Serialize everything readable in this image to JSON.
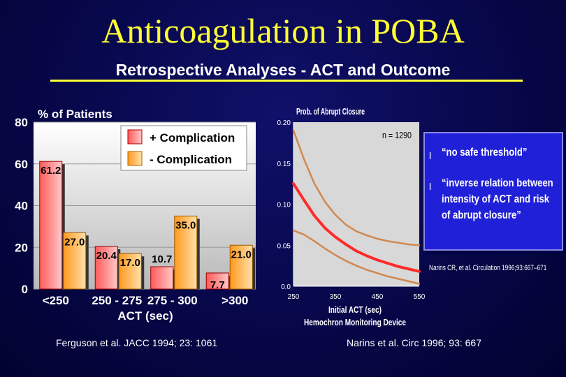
{
  "title": "Anticoagulation in POBA",
  "subtitle": "Retrospective Analyses - ACT and Outcome",
  "chart_data": [
    {
      "type": "bar",
      "title": "% of Patients",
      "xlabel": "ACT (sec)",
      "ylabel": "% of Patients",
      "ylim": [
        0,
        80
      ],
      "yticks": [
        "0",
        "20",
        "40",
        "60",
        "80"
      ],
      "categories": [
        "<250",
        "250 - 275",
        "275 - 300",
        ">300"
      ],
      "series": [
        {
          "name": "+ Complication",
          "color": "#ff2a2a",
          "values": [
            61.2,
            20.4,
            10.7,
            7.7
          ],
          "labels": [
            "61.2",
            "20.4",
            "10.7",
            "7.7"
          ]
        },
        {
          "name": "- Complication",
          "color": "#ffa030",
          "values": [
            27.0,
            17.0,
            35.0,
            21.0
          ],
          "labels": [
            "27.0",
            "17.0",
            "35.0",
            "21.0"
          ]
        }
      ],
      "source": "Ferguson et al.  JACC 1994; 23: 1061"
    },
    {
      "type": "line",
      "title": "Prob. of Abrupt Closure",
      "xlabel": "Initial ACT (sec)",
      "xlabel2": "Hemochron Monitoring Device",
      "annotation": "n = 1290",
      "xlim": [
        250,
        550
      ],
      "ylim": [
        0,
        0.2
      ],
      "xticks": [
        "250",
        "350",
        "450",
        "550"
      ],
      "yticks": [
        "0.0",
        "0.05",
        "0.10",
        "0.15",
        "0.20"
      ],
      "series": [
        {
          "name": "Upper 95% CI",
          "color": "#d08850",
          "x": [
            250,
            275,
            300,
            325,
            350,
            375,
            400,
            425,
            450,
            475,
            500,
            525,
            550
          ],
          "y": [
            0.19,
            0.155,
            0.125,
            0.103,
            0.087,
            0.075,
            0.067,
            0.062,
            0.058,
            0.055,
            0.053,
            0.051,
            0.05
          ]
        },
        {
          "name": "Estimate",
          "color": "#ff2a2a",
          "x": [
            250,
            275,
            300,
            325,
            350,
            375,
            400,
            425,
            450,
            475,
            500,
            525,
            550
          ],
          "y": [
            0.125,
            0.105,
            0.086,
            0.071,
            0.06,
            0.051,
            0.043,
            0.037,
            0.032,
            0.028,
            0.024,
            0.021,
            0.018
          ]
        },
        {
          "name": "Lower 95% CI",
          "color": "#d08850",
          "x": [
            250,
            275,
            300,
            325,
            350,
            375,
            400,
            425,
            450,
            475,
            500,
            525,
            550
          ],
          "y": [
            0.068,
            0.063,
            0.055,
            0.046,
            0.038,
            0.031,
            0.025,
            0.02,
            0.016,
            0.012,
            0.009,
            0.006,
            0.003
          ]
        }
      ],
      "source": "Narins et al.  Circ 1996; 93: 667"
    }
  ],
  "quotes": [
    {
      "bullet": "l",
      "lines": [
        "“no safe threshold”"
      ]
    },
    {
      "bullet": "l",
      "lines": [
        "“inverse relation between",
        "intensity of ACT and risk",
        "of abrupt closure”"
      ]
    }
  ],
  "reference": "Narins CR, et al. Circulation 1996;93:667–671"
}
